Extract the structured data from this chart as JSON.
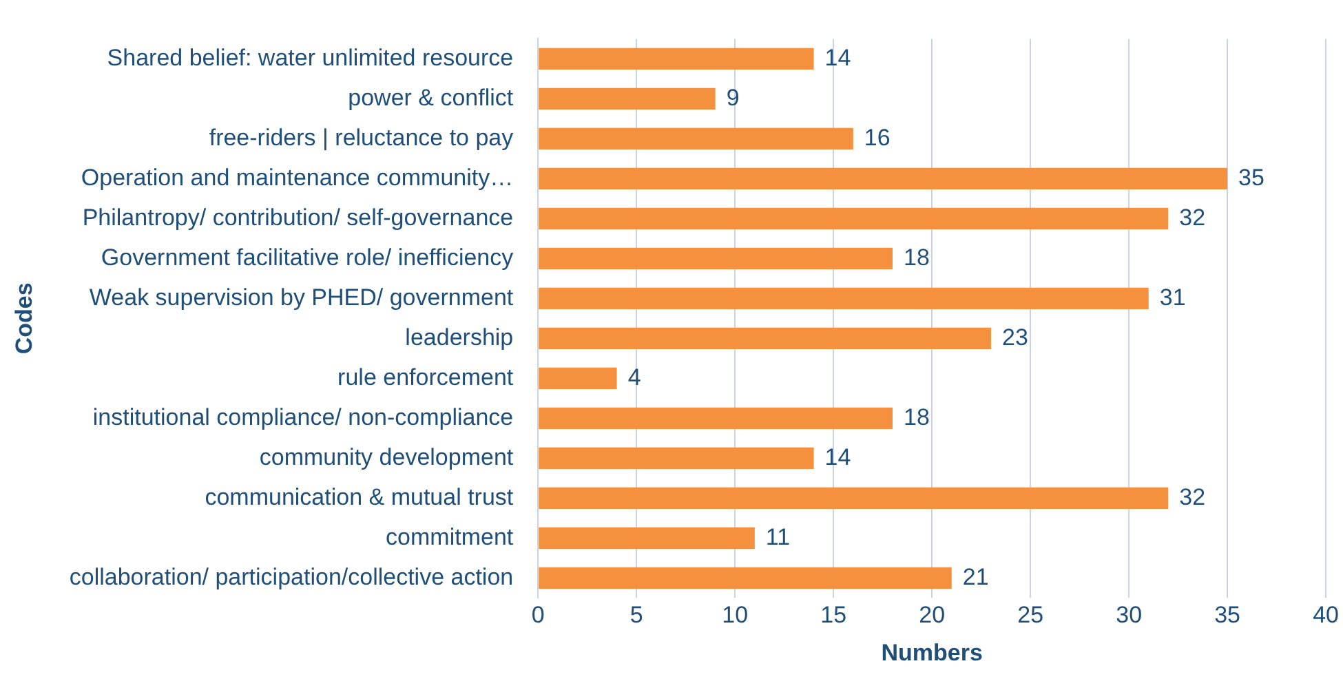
{
  "chart_data": {
    "type": "bar",
    "orientation": "horizontal",
    "xlabel": "Numbers",
    "ylabel": "Codes",
    "categories": [
      "Shared belief: water unlimited resource",
      "power & conflict",
      "free-riders | reluctance to pay",
      "Operation and maintenance community…",
      "Philantropy/ contribution/ self-governance",
      "Government facilitative role/ inefficiency",
      "Weak supervision by PHED/ government",
      "leadership",
      "rule enforcement",
      "institutional compliance/ non-compliance",
      "community development",
      "communication & mutual trust",
      "commitment",
      "collaboration/ participation/collective action"
    ],
    "values": [
      14,
      9,
      16,
      35,
      32,
      18,
      31,
      23,
      4,
      18,
      14,
      32,
      11,
      21
    ],
    "color": "#f5913e",
    "xlim": [
      0,
      40
    ],
    "xticks": [
      0,
      5,
      10,
      15,
      20,
      25,
      30,
      35,
      40
    ],
    "grid": "x",
    "data_labels": true,
    "legend": false
  }
}
